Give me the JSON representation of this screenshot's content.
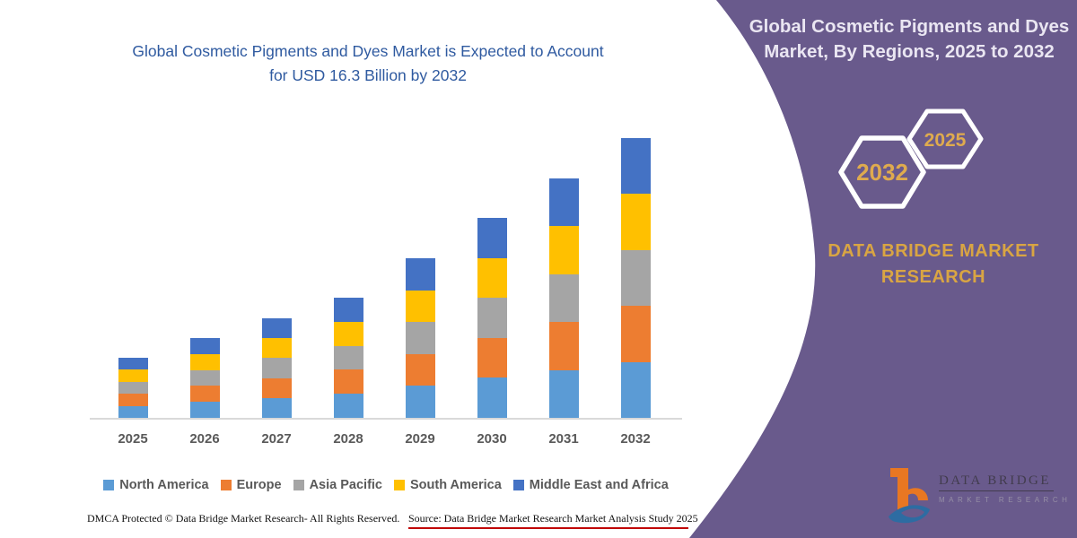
{
  "chart": {
    "title": "Global Cosmetic Pigments and Dyes Market is Expected to Account for USD 16.3 Billion by 2032",
    "title_color": "#2F5AA0",
    "axis_label_color": "#595959",
    "axis_line_color": "#D9D9D9"
  },
  "chart_data": {
    "type": "bar",
    "stacked": true,
    "title": "Global Cosmetic Pigments and Dyes Market is Expected to Account for USD 16.3 Billion by 2032",
    "unit": "USD Billion",
    "xlabel": "",
    "ylabel": "",
    "ylim": [
      0,
      16.3
    ],
    "grid": false,
    "legend_position": "bottom",
    "categories": [
      "2025",
      "2026",
      "2027",
      "2028",
      "2029",
      "2030",
      "2031",
      "2032"
    ],
    "series": [
      {
        "name": "North America",
        "color": "#5B9BD5",
        "values": [
          0.7,
          0.93,
          1.16,
          1.4,
          1.86,
          2.33,
          2.79,
          3.26
        ]
      },
      {
        "name": "Europe",
        "color": "#ED7D31",
        "values": [
          0.7,
          0.93,
          1.16,
          1.4,
          1.86,
          2.33,
          2.79,
          3.26
        ]
      },
      {
        "name": "Asia Pacific",
        "color": "#A5A5A5",
        "values": [
          0.7,
          0.93,
          1.16,
          1.4,
          1.86,
          2.33,
          2.79,
          3.26
        ]
      },
      {
        "name": "South America",
        "color": "#FFC000",
        "values": [
          0.7,
          0.93,
          1.16,
          1.4,
          1.86,
          2.33,
          2.79,
          3.26
        ]
      },
      {
        "name": "Middle East and Africa",
        "color": "#4472C4",
        "values": [
          0.7,
          0.93,
          1.16,
          1.4,
          1.86,
          2.33,
          2.79,
          3.26
        ]
      }
    ],
    "totals": [
      3.5,
      4.65,
      5.8,
      7.0,
      9.3,
      11.65,
      13.95,
      16.3
    ]
  },
  "footer": {
    "dmca": "DMCA Protected © Data Bridge Market Research- All Rights Reserved.",
    "source": "Source: Data Bridge Market Research Market Analysis Study 2025",
    "rule_color": "#C00000"
  },
  "sidebar": {
    "bg_color": "#695A8C",
    "accent_gold": "#D9A543",
    "title": "Global Cosmetic Pigments and Dyes Market, By Regions, 2025 to 2032",
    "hex_large_year": "2032",
    "hex_small_year": "2025",
    "brand": "DATA BRIDGE MARKET RESEARCH",
    "logo": {
      "wordmark": "DATA BRIDGE",
      "tagline": "MARKET RESEARCH"
    }
  }
}
